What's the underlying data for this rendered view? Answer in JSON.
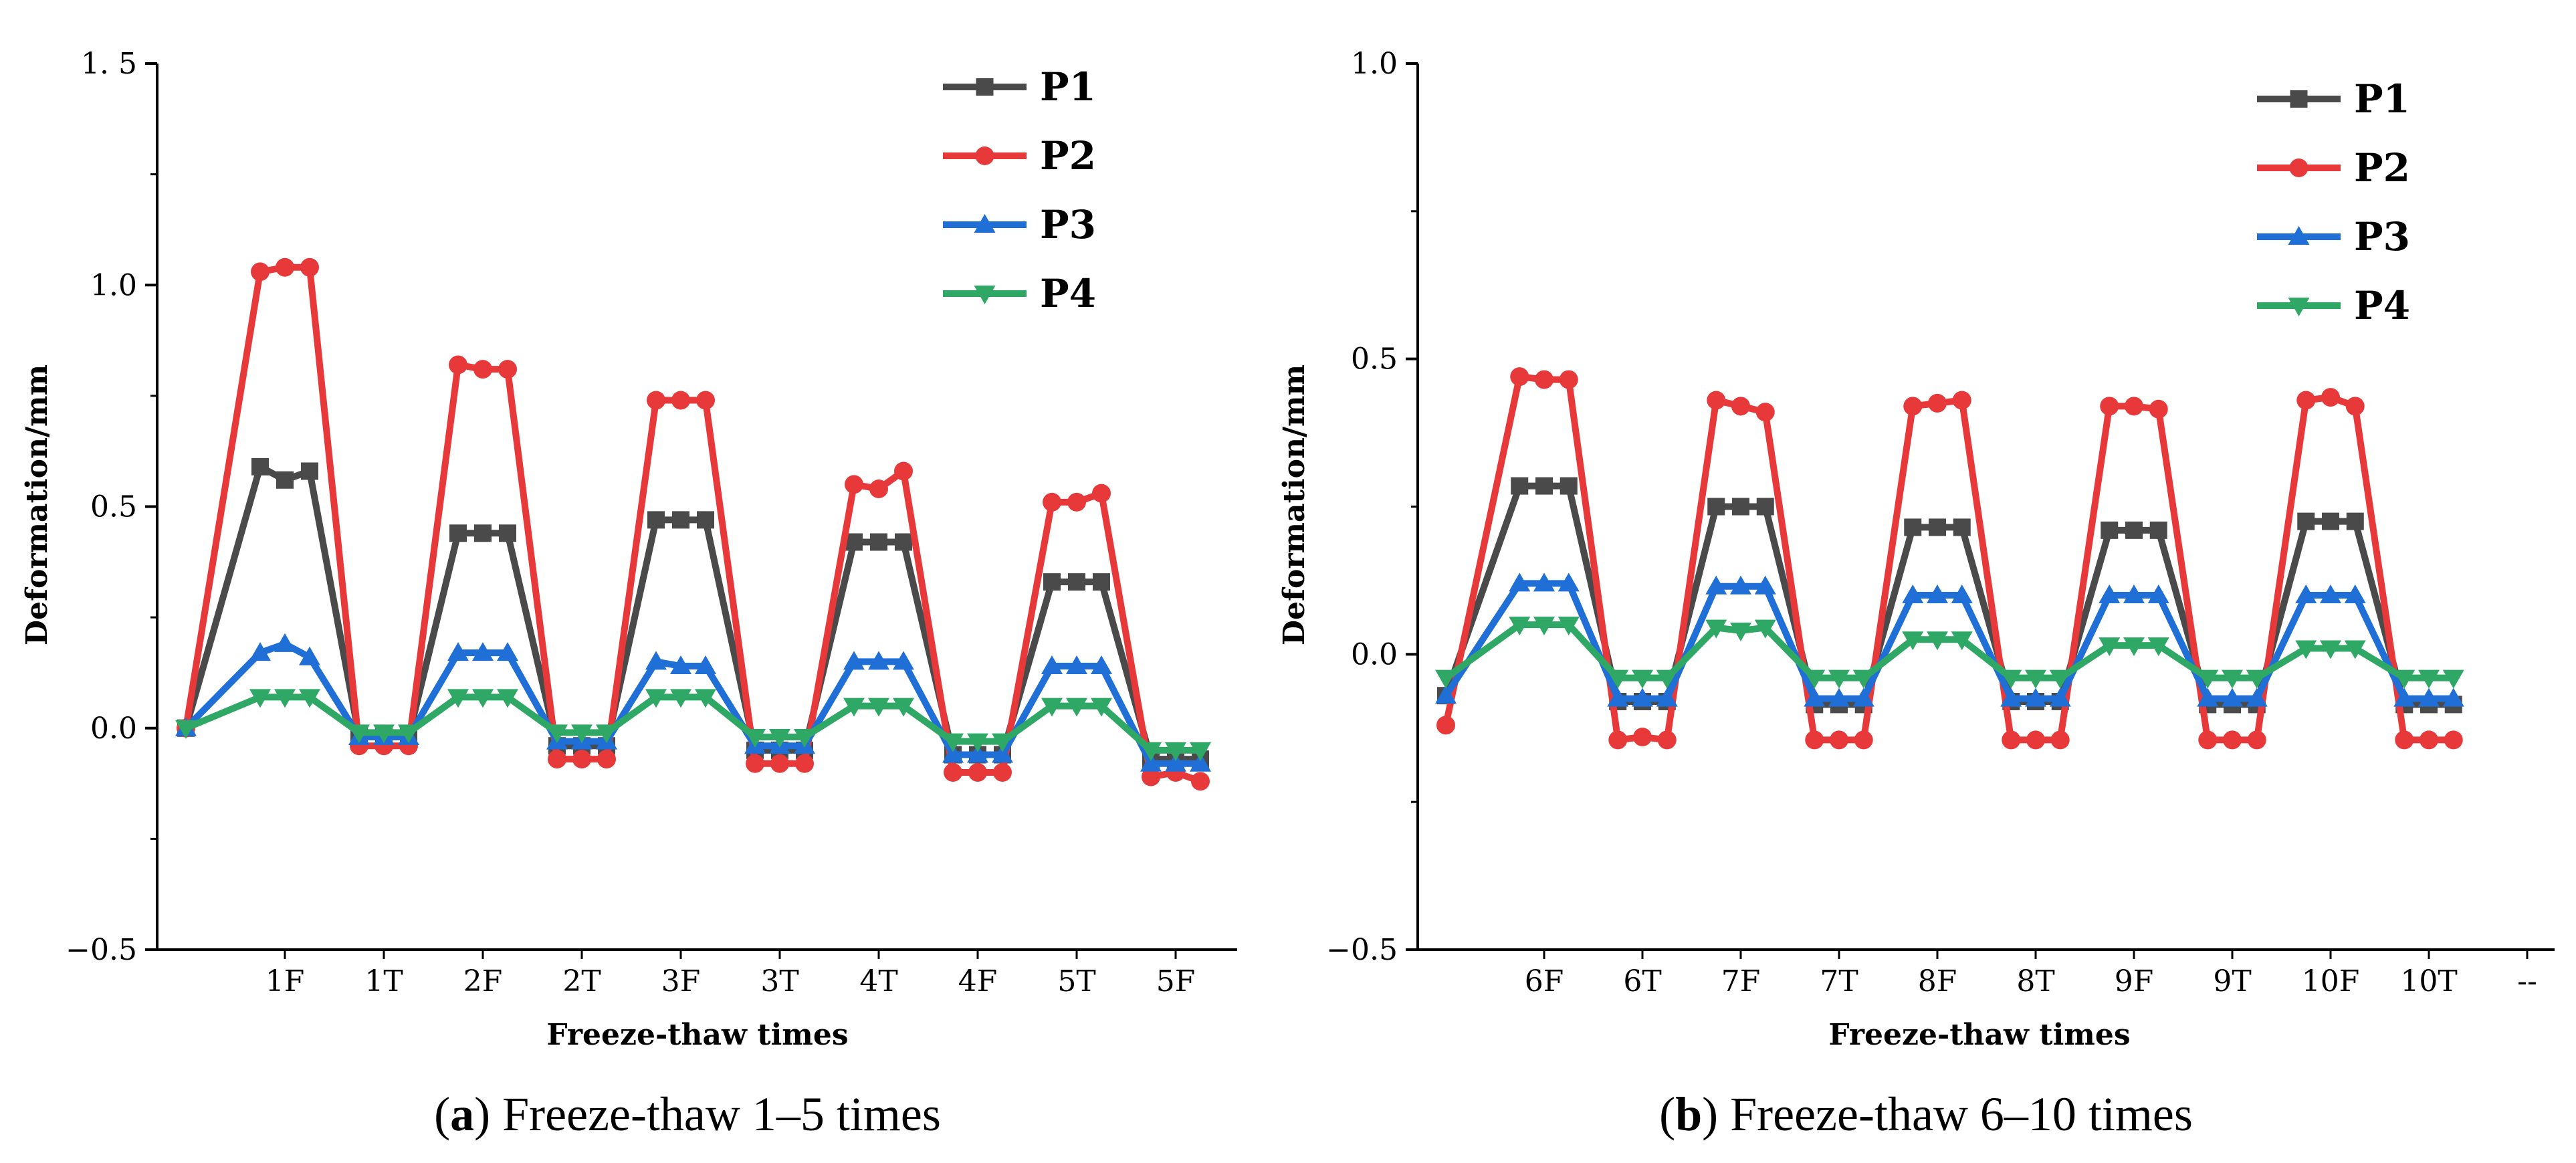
{
  "colors": {
    "P1": "#4a4a4a",
    "P2": "#e8393a",
    "P3": "#1f6fd6",
    "P4": "#2fa866"
  },
  "captions": [
    {
      "letter": "a",
      "text": "Freeze-thaw 1–5 times"
    },
    {
      "letter": "b",
      "text": "Freeze-thaw 6–10 times"
    }
  ],
  "chart_data": [
    {
      "type": "line",
      "title": "",
      "xlabel": "Freeze-thaw times",
      "ylabel": "Deformation/mm",
      "ylim": [
        -0.5,
        1.5
      ],
      "yticks": [
        "−0.5",
        "0.0",
        "0.5",
        "1.0",
        "1. 5"
      ],
      "ytick_values": [
        -0.5,
        0.0,
        0.5,
        1.0,
        1.5
      ],
      "categories": [
        "1F",
        "1T",
        "2F",
        "2T",
        "3F",
        "3T",
        "4T",
        "4F",
        "5T",
        "5F"
      ],
      "x": [
        0,
        0.75,
        1,
        1.25,
        1.75,
        2,
        2.25,
        2.75,
        3,
        3.25,
        3.75,
        4,
        4.25,
        4.75,
        5,
        5.25,
        5.75,
        6,
        6.25,
        6.75,
        7,
        7.25,
        7.75,
        8,
        8.25,
        8.75,
        9,
        9.25,
        9.75,
        10,
        10.25
      ],
      "legend_position": "top-right",
      "grid": false,
      "series": [
        {
          "name": "P1",
          "values": [
            0,
            0.59,
            0.56,
            0.58,
            -0.02,
            -0.02,
            -0.02,
            0.44,
            0.44,
            0.44,
            -0.04,
            -0.04,
            -0.04,
            0.47,
            0.47,
            0.47,
            -0.05,
            -0.05,
            -0.05,
            0.42,
            0.42,
            0.42,
            -0.06,
            -0.06,
            -0.06,
            0.33,
            0.33,
            0.33,
            -0.07,
            -0.07,
            -0.07
          ]
        },
        {
          "name": "P2",
          "values": [
            0,
            1.03,
            1.04,
            1.04,
            -0.04,
            -0.04,
            -0.04,
            0.82,
            0.81,
            0.81,
            -0.07,
            -0.07,
            -0.07,
            0.74,
            0.74,
            0.74,
            -0.08,
            -0.08,
            -0.08,
            0.55,
            0.54,
            0.58,
            -0.1,
            -0.1,
            -0.1,
            0.51,
            0.51,
            0.53,
            -0.11,
            -0.1,
            -0.12
          ]
        },
        {
          "name": "P3",
          "values": [
            0,
            0.17,
            0.19,
            0.16,
            -0.02,
            -0.02,
            -0.02,
            0.17,
            0.17,
            0.17,
            -0.03,
            -0.03,
            -0.03,
            0.15,
            0.14,
            0.14,
            -0.04,
            -0.04,
            -0.04,
            0.15,
            0.15,
            0.15,
            -0.06,
            -0.06,
            -0.06,
            0.14,
            0.14,
            0.14,
            -0.08,
            -0.08,
            -0.08
          ]
        },
        {
          "name": "P4",
          "values": [
            0,
            0.07,
            0.07,
            0.07,
            -0.01,
            -0.01,
            -0.01,
            0.07,
            0.07,
            0.07,
            -0.01,
            -0.01,
            -0.01,
            0.07,
            0.07,
            0.07,
            -0.02,
            -0.02,
            -0.02,
            0.05,
            0.05,
            0.05,
            -0.03,
            -0.03,
            -0.03,
            0.05,
            0.05,
            0.05,
            -0.05,
            -0.05,
            -0.05
          ]
        }
      ]
    },
    {
      "type": "line",
      "title": "",
      "xlabel": "Freeze-thaw times",
      "ylabel": "Deformation/mm",
      "ylim": [
        -0.5,
        1.0
      ],
      "yticks": [
        "−0.5",
        "0.0",
        "0.5",
        "1.0"
      ],
      "ytick_values": [
        -0.5,
        0.0,
        0.5,
        1.0
      ],
      "categories": [
        "6F",
        "6T",
        "7F",
        "7T",
        "8F",
        "8T",
        "9F",
        "9T",
        "10F",
        "10T",
        "--"
      ],
      "x": [
        0,
        0.75,
        1,
        1.25,
        1.75,
        2,
        2.25,
        2.75,
        3,
        3.25,
        3.75,
        4,
        4.25,
        4.75,
        5,
        5.25,
        5.75,
        6,
        6.25,
        6.75,
        7,
        7.25,
        7.75,
        8,
        8.25,
        8.75,
        9,
        9.25,
        9.75,
        10,
        10.25
      ],
      "legend_position": "top-right",
      "grid": false,
      "series": [
        {
          "name": "P1",
          "values": [
            -0.07,
            0.285,
            0.285,
            0.285,
            -0.08,
            -0.08,
            -0.08,
            0.25,
            0.25,
            0.25,
            -0.085,
            -0.085,
            -0.085,
            0.215,
            0.215,
            0.215,
            -0.08,
            -0.08,
            -0.08,
            0.21,
            0.21,
            0.21,
            -0.085,
            -0.085,
            -0.085,
            0.225,
            0.225,
            0.225,
            -0.085,
            -0.085,
            -0.085
          ]
        },
        {
          "name": "P2",
          "values": [
            -0.12,
            0.47,
            0.465,
            0.465,
            -0.145,
            -0.14,
            -0.145,
            0.43,
            0.42,
            0.41,
            -0.145,
            -0.145,
            -0.145,
            0.42,
            0.425,
            0.43,
            -0.145,
            -0.145,
            -0.145,
            0.42,
            0.42,
            0.415,
            -0.145,
            -0.145,
            -0.145,
            0.43,
            0.435,
            0.42,
            -0.145,
            -0.145,
            -0.145
          ]
        },
        {
          "name": "P3",
          "values": [
            -0.07,
            0.12,
            0.12,
            0.12,
            -0.075,
            -0.075,
            -0.075,
            0.115,
            0.115,
            0.115,
            -0.075,
            -0.075,
            -0.075,
            0.1,
            0.1,
            0.1,
            -0.075,
            -0.075,
            -0.075,
            0.1,
            0.1,
            0.1,
            -0.075,
            -0.075,
            -0.075,
            0.1,
            0.1,
            0.1,
            -0.075,
            -0.075,
            -0.075
          ]
        },
        {
          "name": "P4",
          "values": [
            -0.04,
            0.05,
            0.05,
            0.05,
            -0.04,
            -0.04,
            -0.04,
            0.045,
            0.04,
            0.045,
            -0.04,
            -0.04,
            -0.04,
            0.025,
            0.025,
            0.025,
            -0.04,
            -0.04,
            -0.04,
            0.015,
            0.015,
            0.015,
            -0.04,
            -0.04,
            -0.04,
            0.01,
            0.01,
            0.01,
            -0.04,
            -0.04,
            -0.04
          ]
        }
      ]
    }
  ]
}
